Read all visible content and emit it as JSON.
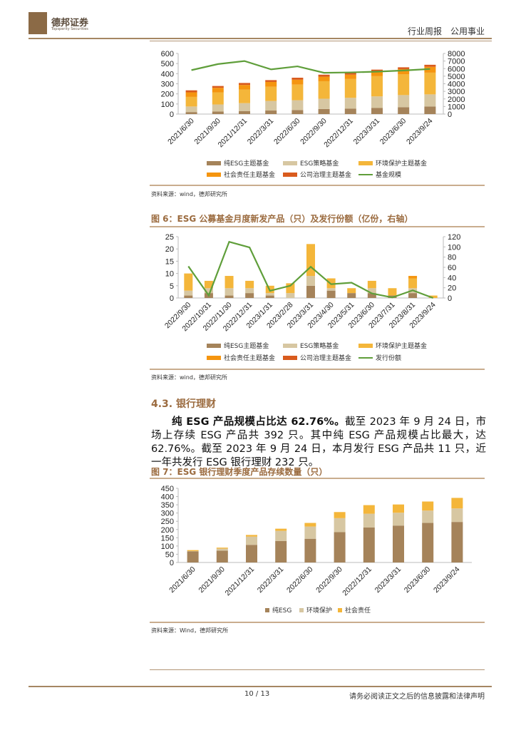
{
  "header": {
    "brand_cn": "德邦证券",
    "brand_en": "Topsperity Securities",
    "report_type": "行业周报　公用事业"
  },
  "colors": {
    "pure": "#a5835a",
    "strategy": "#d7c7a2",
    "env": "#f4b63a",
    "social": "#f5950f",
    "gov": "#d95b1d",
    "line": "#5f9e3a",
    "accent": "#9b6b3f"
  },
  "figure5": {
    "source": "资料来源：wind，德邦研究所",
    "legend": [
      "纯ESG主题基金",
      "ESG策略基金",
      "环境保护主题基金",
      "社会责任主题基金",
      "公司治理主题基金",
      "基金规模"
    ]
  },
  "figure6": {
    "title": "图 6：ESG 公募基金月度新发产品（只）及发行份额（亿份，右轴）",
    "source": "资料来源：wind，德邦研究所",
    "legend": [
      "纯ESG主题基金",
      "ESG策略基金",
      "环境保护主题基金",
      "社会责任主题基金",
      "公司治理主题基金",
      "发行份额"
    ]
  },
  "section": {
    "title": "4.3. 银行理财",
    "para_bold": "纯 ESG 产品规模占比达 62.76%。",
    "para_text": "截至 2023 年 9 月 24 日，市场上存续 ESG 产品共 392 只。其中纯 ESG 产品规模占比最大，达 62.76%。截至 2023 年 9 月 24 日，本月发行 ESG 产品共 11 只，近一年共发行 ESG 银行理财 232 只。"
  },
  "figure7": {
    "title": "图 7：ESG 银行理财季度产品存续数量（只）",
    "source": "资料来源：Wind，德邦研究所",
    "legend": [
      "纯ESG",
      "环境保护",
      "社会责任"
    ]
  },
  "footer": {
    "page": "10 / 13",
    "disclaimer": "请务必阅读正文之后的信息披露和法律声明"
  },
  "chart_data": [
    {
      "type": "bar",
      "stacked": true,
      "categories": [
        "2021/6/30",
        "2021/9/30",
        "2021/12/31",
        "2022/3/31",
        "2022/6/30",
        "2022/9/30",
        "2022/12/31",
        "2023/3/31",
        "2023/6/30",
        "2023/9/24"
      ],
      "ylim": [
        0,
        600
      ],
      "yticks": [
        0,
        100,
        200,
        300,
        400,
        500,
        600
      ],
      "y2lim": [
        0,
        8000
      ],
      "y2ticks": [
        0,
        1000,
        2000,
        3000,
        4000,
        5000,
        6000,
        7000,
        8000
      ],
      "series": [
        {
          "name": "纯ESG主题基金",
          "values": [
            20,
            25,
            30,
            35,
            40,
            50,
            53,
            60,
            68,
            75
          ]
        },
        {
          "name": "ESG策略基金",
          "values": [
            55,
            70,
            78,
            95,
            97,
            102,
            108,
            115,
            120,
            120
          ]
        },
        {
          "name": "环境保护主题基金",
          "values": [
            95,
            120,
            135,
            140,
            155,
            173,
            186,
            200,
            207,
            215
          ]
        },
        {
          "name": "社会责任主题基金",
          "values": [
            45,
            45,
            45,
            48,
            48,
            45,
            43,
            45,
            50,
            58
          ]
        },
        {
          "name": "公司治理主题基金",
          "values": [
            20,
            18,
            20,
            18,
            20,
            20,
            20,
            20,
            18,
            20
          ]
        }
      ],
      "line": {
        "name": "基金规模",
        "axis": "right",
        "values": [
          5800,
          6600,
          7000,
          5900,
          6300,
          5450,
          5500,
          5600,
          5750,
          5950
        ]
      },
      "legend": "bottom",
      "grid": false
    },
    {
      "type": "bar",
      "stacked": true,
      "title": "图 6：ESG 公募基金月度新发产品（只）及发行份额（亿份，右轴）",
      "categories": [
        "2022/9/30",
        "2022/10/31",
        "2022/11/30",
        "2022/12/31",
        "2023/1/31",
        "2023/2/28",
        "2023/3/31",
        "2023/4/30",
        "2023/5/31",
        "2023/6/30",
        "2023/7/31",
        "2023/8/31",
        "2023/9/24"
      ],
      "ylim": [
        0,
        25
      ],
      "yticks": [
        0,
        5,
        10,
        15,
        20,
        25
      ],
      "y2lim": [
        0,
        120
      ],
      "y2ticks": [
        0,
        20,
        40,
        60,
        80,
        100,
        120
      ],
      "series": [
        {
          "name": "纯ESG主题基金",
          "values": [
            1,
            2,
            1,
            2,
            1,
            0,
            5,
            3,
            2,
            2,
            1,
            2,
            0
          ]
        },
        {
          "name": "ESG策略基金",
          "values": [
            2,
            2,
            3,
            2,
            1,
            2,
            4,
            1,
            0,
            2,
            0,
            2,
            0
          ]
        },
        {
          "name": "环境保护主题基金",
          "values": [
            7,
            3,
            5,
            3,
            3,
            4,
            13,
            4,
            2,
            3,
            3,
            4,
            1
          ]
        },
        {
          "name": "社会责任主题基金",
          "values": [
            0,
            0,
            0,
            0,
            0,
            0,
            0,
            0,
            0,
            0,
            0,
            1,
            0
          ]
        },
        {
          "name": "公司治理主题基金",
          "values": [
            0,
            0,
            0,
            0,
            0,
            0,
            0,
            0,
            0,
            0,
            0,
            0,
            0
          ]
        }
      ],
      "line": {
        "name": "发行份额",
        "axis": "right",
        "values": [
          62,
          5,
          110,
          99,
          14,
          24,
          61,
          27,
          30,
          9,
          1,
          15,
          0
        ]
      },
      "legend": "bottom",
      "grid": false
    },
    {
      "type": "bar",
      "stacked": true,
      "title": "图 7：ESG 银行理财季度产品存续数量（只）",
      "categories": [
        "2021/6/30",
        "2021/9/30",
        "2021/12/31",
        "2022/3/31",
        "2022/6/30",
        "2022/9/30",
        "2022/12/31",
        "2023/3/31",
        "2023/6/30",
        "2023/9/24"
      ],
      "ylim": [
        0,
        450
      ],
      "yticks": [
        0,
        50,
        100,
        150,
        200,
        250,
        300,
        350,
        400,
        450
      ],
      "series": [
        {
          "name": "纯ESG",
          "values": [
            67,
            72,
            107,
            130,
            144,
            184,
            212,
            224,
            240,
            246
          ]
        },
        {
          "name": "环境保护",
          "values": [
            2,
            12,
            50,
            62,
            74,
            85,
            84,
            78,
            75,
            82
          ]
        },
        {
          "name": "社会责任",
          "values": [
            6,
            6,
            10,
            13,
            22,
            37,
            52,
            50,
            55,
            64
          ]
        }
      ],
      "legend": "bottom",
      "grid": false
    }
  ]
}
